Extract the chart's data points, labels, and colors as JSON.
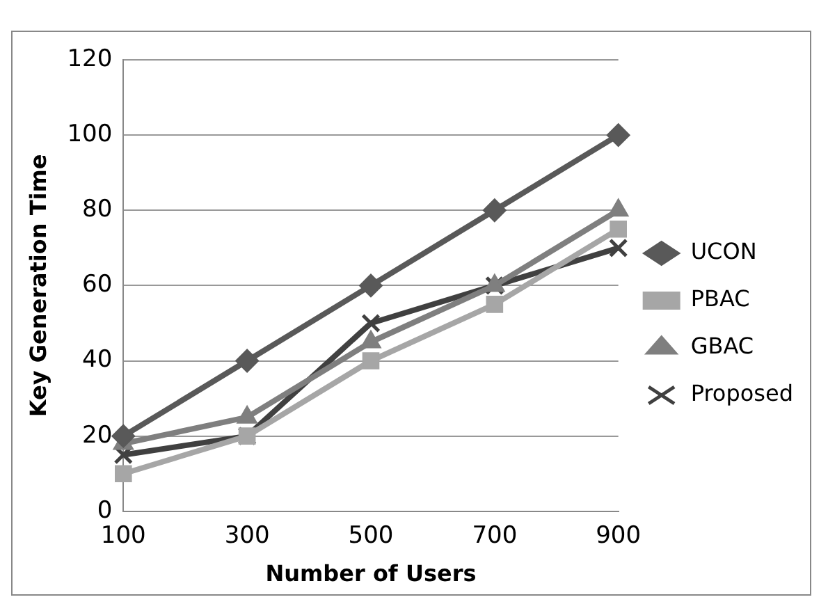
{
  "chart_data": {
    "type": "line",
    "xlabel": "Number of Users",
    "ylabel": "Key Generation Time",
    "categories": [
      "100",
      "300",
      "500",
      "700",
      "900"
    ],
    "series": [
      {
        "name": "UCON",
        "color": "#595959",
        "marker": "diamond",
        "values": [
          20,
          40,
          60,
          80,
          100
        ]
      },
      {
        "name": "PBAC",
        "color": "#a6a6a6",
        "marker": "square",
        "values": [
          10,
          20,
          40,
          55,
          75
        ]
      },
      {
        "name": "GBAC",
        "color": "#7f7f7f",
        "marker": "triangle",
        "values": [
          18,
          25,
          45,
          60,
          80
        ]
      },
      {
        "name": "Proposed",
        "color": "#404040",
        "marker": "cross",
        "values": [
          15,
          20,
          50,
          60,
          70
        ]
      }
    ],
    "ylim": [
      0,
      120
    ],
    "yticks": [
      0,
      20,
      40,
      60,
      80,
      100,
      120
    ],
    "grid": "y",
    "legend": "right"
  }
}
